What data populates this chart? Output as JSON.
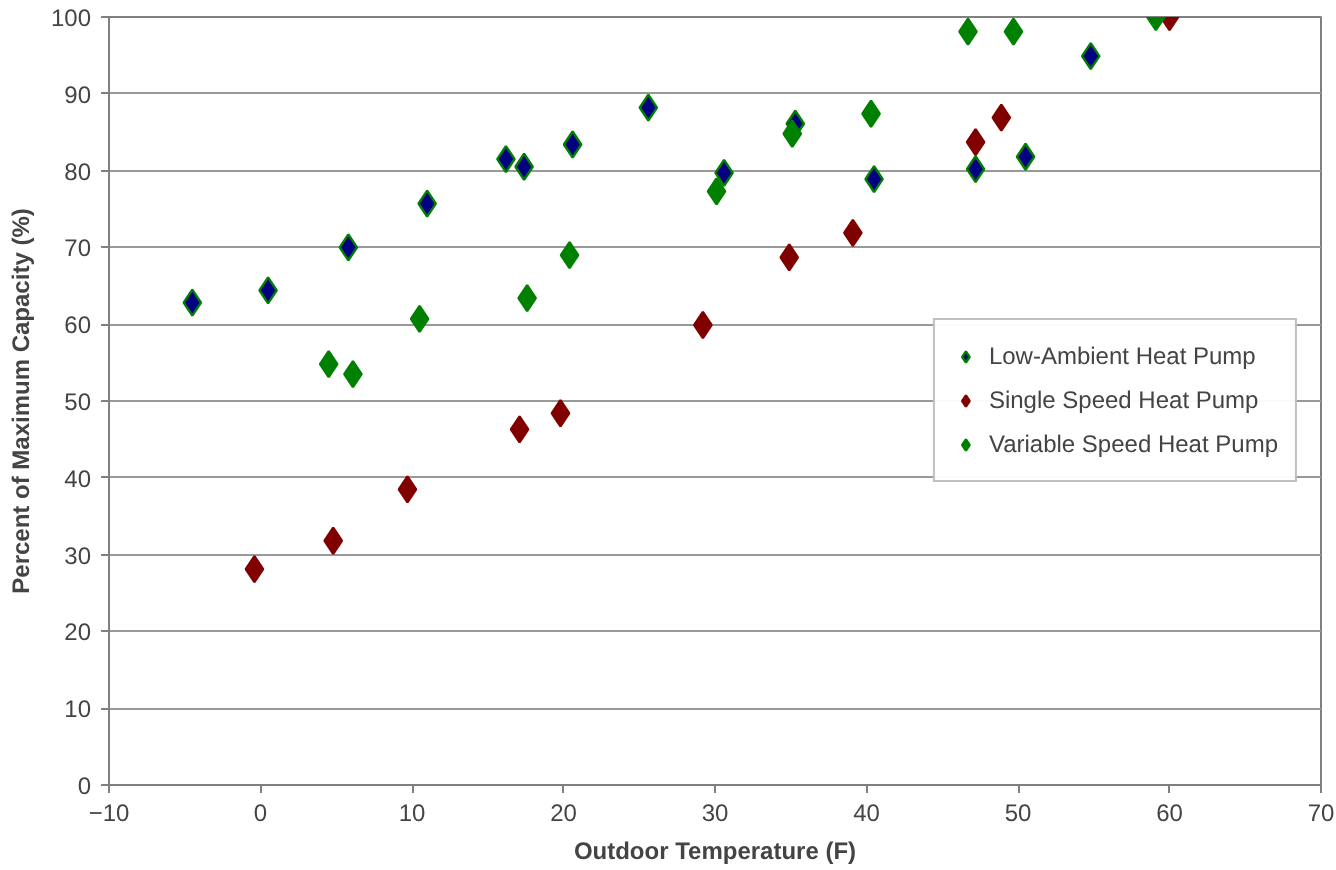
{
  "chart_data": {
    "type": "scatter",
    "xlabel": "Outdoor Temperature (F)",
    "ylabel": "Percent of Maximum Capacity (%)",
    "xlim": [
      -10,
      70
    ],
    "ylim": [
      0,
      100
    ],
    "xticks": [
      -10,
      0,
      10,
      20,
      30,
      40,
      50,
      60,
      70
    ],
    "yticks": [
      0,
      10,
      20,
      30,
      40,
      50,
      60,
      70,
      80,
      90,
      100
    ],
    "grid": "y",
    "legend": "right",
    "marker": "diamond",
    "series": [
      {
        "name": "Low-Ambient Heat Pump",
        "color": "#000080",
        "x": [
          -4.5,
          0.5,
          5.8,
          11,
          16.2,
          17.4,
          20.6,
          25.6,
          30.6,
          35.3,
          40.5,
          47.2,
          50.5,
          54.8
        ],
        "values": [
          62.8,
          64.4,
          70,
          75.7,
          81.5,
          80.5,
          83.4,
          88.2,
          79.7,
          86.1,
          78.9,
          80.2,
          81.8,
          94.9
        ]
      },
      {
        "name": "Single Speed Heat Pump",
        "color": "#800000",
        "x": [
          -0.4,
          4.8,
          9.7,
          17.1,
          19.8,
          29.2,
          34.9,
          39.1,
          47.2,
          48.9,
          60
        ],
        "values": [
          28.1,
          31.8,
          38.5,
          46.3,
          48.4,
          59.9,
          68.7,
          71.9,
          83.7,
          86.9,
          100
        ]
      },
      {
        "name": "Variable Speed Heat Pump",
        "color": "#008000",
        "x": [
          4.5,
          6.1,
          10.5,
          17.6,
          20.4,
          30.1,
          35.1,
          40.3,
          46.7,
          49.7,
          59.1
        ],
        "values": [
          54.8,
          53.5,
          60.7,
          63.4,
          69,
          77.3,
          84.8,
          87.4,
          98.1,
          98.1,
          100
        ]
      }
    ]
  }
}
